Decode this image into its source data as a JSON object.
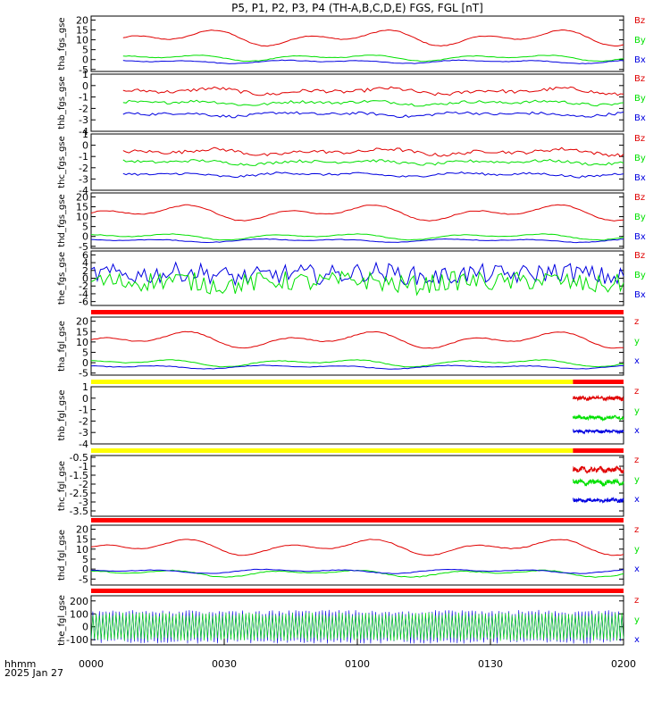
{
  "title": "P5, P1, P2, P3, P4 (TH-A,B,C,D,E) FGS, FGL [nT]",
  "footer": {
    "axis_label": "hhmm",
    "date": "2025 Jan 27"
  },
  "colors": {
    "z": "#e00000",
    "y": "#00e000",
    "x": "#0000e0",
    "flag_red": "#ff0000",
    "flag_yellow": "#ffff00"
  },
  "chart_data": {
    "type": "line",
    "x_axis": {
      "range": [
        "0000",
        "0200"
      ],
      "ticks": [
        "0000",
        "0030",
        "0100",
        "0130",
        "0200"
      ]
    },
    "panels": [
      {
        "label": "tha_fgs_gse",
        "ylim": [
          -6,
          22
        ],
        "yticks": [
          -5,
          0,
          5,
          10,
          15,
          20
        ],
        "legend": [
          "Bz",
          "By",
          "Bx"
        ],
        "series": [
          {
            "name": "Bz",
            "color": "z",
            "start": 0.06,
            "end": 1.0,
            "base": 11,
            "amp": 4.5,
            "noise": 0.2
          },
          {
            "name": "By",
            "color": "y",
            "start": 0.06,
            "end": 1.0,
            "base": 1,
            "amp": 1.8,
            "noise": 0.15
          },
          {
            "name": "Bx",
            "color": "x",
            "start": 0.06,
            "end": 1.0,
            "base": -1,
            "amp": 1.0,
            "noise": 0.15
          }
        ]
      },
      {
        "label": "thb_fgs_gse",
        "ylim": [
          -4,
          1
        ],
        "yticks": [
          -4,
          -3,
          -2,
          -1,
          0,
          1
        ],
        "legend": [
          "Bz",
          "By",
          "Bx"
        ],
        "series": [
          {
            "name": "Bz",
            "color": "z",
            "start": 0.06,
            "end": 1.0,
            "base": -0.5,
            "amp": 0.3,
            "noise": 0.15
          },
          {
            "name": "By",
            "color": "y",
            "start": 0.06,
            "end": 1.0,
            "base": -1.5,
            "amp": 0.2,
            "noise": 0.12
          },
          {
            "name": "Bx",
            "color": "x",
            "start": 0.06,
            "end": 1.0,
            "base": -2.5,
            "amp": 0.2,
            "noise": 0.12
          }
        ]
      },
      {
        "label": "thc_fgs_gse",
        "ylim": [
          -4,
          1
        ],
        "yticks": [
          -4,
          -3,
          -2,
          -1,
          0,
          1
        ],
        "legend": [
          "Bz",
          "By",
          "Bx"
        ],
        "series": [
          {
            "name": "Bz",
            "color": "z",
            "start": 0.06,
            "end": 1.0,
            "base": -0.6,
            "amp": 0.3,
            "noise": 0.15
          },
          {
            "name": "By",
            "color": "y",
            "start": 0.06,
            "end": 1.0,
            "base": -1.5,
            "amp": 0.2,
            "noise": 0.12
          },
          {
            "name": "Bx",
            "color": "x",
            "start": 0.06,
            "end": 1.0,
            "base": -2.6,
            "amp": 0.2,
            "noise": 0.1
          }
        ]
      },
      {
        "label": "thd_fgs_gse",
        "ylim": [
          -6,
          22
        ],
        "yticks": [
          -5,
          0,
          5,
          10,
          15,
          20
        ],
        "legend": [
          "Bz",
          "By",
          "Bx"
        ],
        "series": [
          {
            "name": "Bz",
            "color": "z",
            "start": 0.0,
            "end": 1.0,
            "base": 12,
            "amp": 4.5,
            "noise": 0.2
          },
          {
            "name": "By",
            "color": "y",
            "start": 0.0,
            "end": 1.0,
            "base": 0,
            "amp": 1.8,
            "noise": 0.15
          },
          {
            "name": "Bx",
            "color": "x",
            "start": 0.0,
            "end": 1.0,
            "base": -2,
            "amp": 1.0,
            "noise": 0.15
          }
        ]
      },
      {
        "label": "the_fgs_gse",
        "ylim": [
          -7,
          7
        ],
        "yticks": [
          -6,
          -4,
          -2,
          0,
          2,
          4,
          6
        ],
        "legend": [
          "Bz",
          "By",
          "Bx"
        ],
        "series": [
          {
            "name": "Bx",
            "color": "x",
            "start": 0.0,
            "end": 1.0,
            "base": 1,
            "amp": 0.8,
            "noise": 2.5
          },
          {
            "name": "By",
            "color": "y",
            "start": 0.0,
            "end": 1.0,
            "base": -1,
            "amp": 0.8,
            "noise": 2.5
          }
        ]
      },
      {
        "label": "tha_fgl_gse",
        "ylim": [
          -6,
          22
        ],
        "yticks": [
          -5,
          0,
          5,
          10,
          15,
          20
        ],
        "legend": [
          "z",
          "y",
          "x"
        ],
        "flag": [
          {
            "from": 0.0,
            "to": 1.0,
            "color": "flag_red"
          }
        ],
        "series": [
          {
            "name": "z",
            "color": "z",
            "start": 0.0,
            "end": 1.0,
            "base": 11,
            "amp": 4.5,
            "noise": 0.2
          },
          {
            "name": "y",
            "color": "y",
            "start": 0.0,
            "end": 1.0,
            "base": 0,
            "amp": 2.0,
            "noise": 0.15
          },
          {
            "name": "x",
            "color": "x",
            "start": 0.0,
            "end": 1.0,
            "base": -2,
            "amp": 1.0,
            "noise": 0.15
          }
        ]
      },
      {
        "label": "thb_fgl_gse",
        "ylim": [
          -4,
          1
        ],
        "yticks": [
          -4,
          -3,
          -2,
          -1,
          0,
          1
        ],
        "legend": [
          "z",
          "y",
          "x"
        ],
        "flag": [
          {
            "from": 0.0,
            "to": 0.905,
            "color": "flag_yellow"
          },
          {
            "from": 0.905,
            "to": 1.0,
            "color": "flag_red"
          }
        ],
        "series": [
          {
            "name": "z",
            "color": "z",
            "start": 0.905,
            "end": 1.0,
            "base": 0.0,
            "amp": 0.1,
            "noise": 0.15
          },
          {
            "name": "y",
            "color": "y",
            "start": 0.905,
            "end": 1.0,
            "base": -1.7,
            "amp": 0.1,
            "noise": 0.15
          },
          {
            "name": "x",
            "color": "x",
            "start": 0.905,
            "end": 1.0,
            "base": -2.9,
            "amp": 0.05,
            "noise": 0.12
          }
        ]
      },
      {
        "label": "thc_fgl_gse",
        "ylim": [
          -3.8,
          -0.4
        ],
        "yticks": [
          -3.5,
          -3.0,
          -2.5,
          -2.0,
          -1.5,
          -1.0,
          -0.5
        ],
        "legend": [
          "z",
          "y",
          "x"
        ],
        "flag": [
          {
            "from": 0.0,
            "to": 0.905,
            "color": "flag_yellow"
          },
          {
            "from": 0.905,
            "to": 1.0,
            "color": "flag_red"
          }
        ],
        "series": [
          {
            "name": "z",
            "color": "z",
            "start": 0.905,
            "end": 1.0,
            "base": -1.2,
            "amp": 0.1,
            "noise": 0.12
          },
          {
            "name": "y",
            "color": "y",
            "start": 0.905,
            "end": 1.0,
            "base": -1.9,
            "amp": 0.1,
            "noise": 0.12
          },
          {
            "name": "x",
            "color": "x",
            "start": 0.905,
            "end": 1.0,
            "base": -2.9,
            "amp": 0.05,
            "noise": 0.1
          }
        ]
      },
      {
        "label": "thd_fgl_gse",
        "ylim": [
          -8,
          22
        ],
        "yticks": [
          -5,
          0,
          5,
          10,
          15,
          20
        ],
        "legend": [
          "z",
          "y",
          "x"
        ],
        "flag": [
          {
            "from": 0.0,
            "to": 1.0,
            "color": "flag_red"
          }
        ],
        "series": [
          {
            "name": "z",
            "color": "z",
            "start": 0.0,
            "end": 1.0,
            "base": 11,
            "amp": 4.5,
            "noise": 0.2
          },
          {
            "name": "y",
            "color": "y",
            "start": 0.0,
            "end": 1.0,
            "base": -2,
            "amp": 2.0,
            "noise": 0.2
          },
          {
            "name": "x",
            "color": "x",
            "start": 0.0,
            "end": 1.0,
            "base": -1,
            "amp": 1.2,
            "noise": 0.15
          }
        ]
      },
      {
        "label": "the_fgl_gse",
        "ylim": [
          -140,
          240
        ],
        "yticks": [
          -100,
          0,
          100,
          200
        ],
        "legend": [
          "z",
          "y",
          "x"
        ],
        "flag": [
          {
            "from": 0.0,
            "to": 1.0,
            "color": "flag_red"
          }
        ],
        "series": [
          {
            "name": "x",
            "color": "x",
            "start": 0.0,
            "end": 1.0,
            "base": 0,
            "amp": 0,
            "noise": 130,
            "band": true
          },
          {
            "name": "y",
            "color": "y",
            "start": 0.0,
            "end": 1.0,
            "base": 0,
            "amp": 0,
            "noise": 110,
            "band": true
          }
        ]
      }
    ]
  }
}
